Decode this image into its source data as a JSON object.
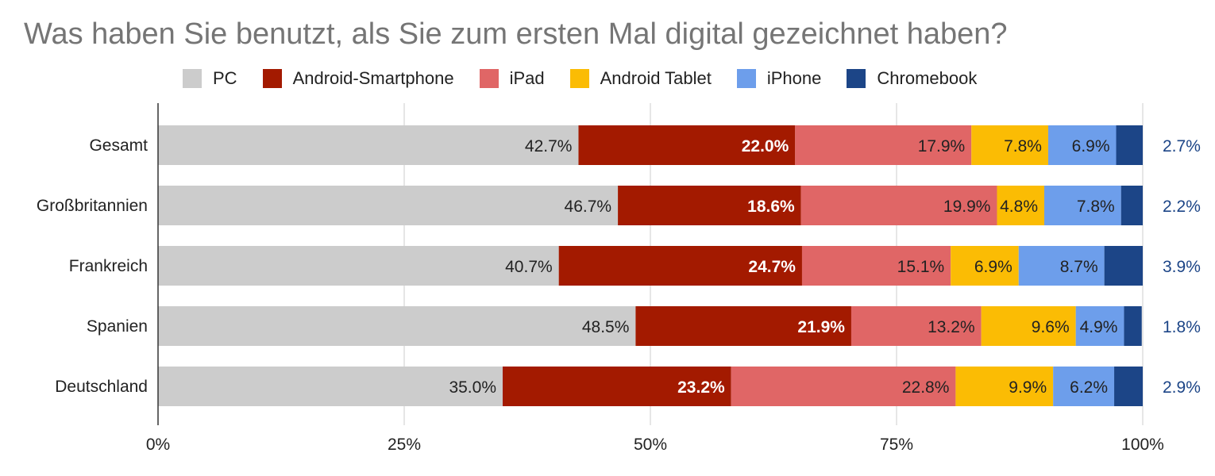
{
  "chart_data": {
    "type": "bar",
    "orientation": "horizontal",
    "stacked": true,
    "title": "Was haben Sie benutzt, als Sie zum ersten Mal digital gezeichnet haben?",
    "categories": [
      "Gesamt",
      "Großbritannien",
      "Frankreich",
      "Spanien",
      "Deutschland"
    ],
    "series": [
      {
        "name": "PC",
        "color": "#cccccc",
        "label_color": "#222222",
        "label_bold": false,
        "values": [
          42.7,
          46.7,
          40.7,
          48.5,
          35.0
        ],
        "labels": [
          "42.7%",
          "46.7%",
          "40.7%",
          "48.5%",
          "35.0%"
        ]
      },
      {
        "name": "Android-Smartphone",
        "color": "#a31a00",
        "label_color": "#ffffff",
        "label_bold": true,
        "values": [
          22.0,
          18.6,
          24.7,
          21.9,
          23.2
        ],
        "labels": [
          "22.0%",
          "18.6%",
          "24.7%",
          "21.9%",
          "23.2%"
        ]
      },
      {
        "name": "iPad",
        "color": "#e06666",
        "label_color": "#222222",
        "label_bold": false,
        "values": [
          17.9,
          19.9,
          15.1,
          13.2,
          22.8
        ],
        "labels": [
          "17.9%",
          "19.9%",
          "15.1%",
          "13.2%",
          "22.8%"
        ]
      },
      {
        "name": "Android Tablet",
        "color": "#fbbc04",
        "label_color": "#222222",
        "label_bold": false,
        "values": [
          7.8,
          4.8,
          6.9,
          9.6,
          9.9
        ],
        "labels": [
          "7.8%",
          "4.8%",
          "6.9%",
          "9.6%",
          "9.9%"
        ]
      },
      {
        "name": "iPhone",
        "color": "#6d9eeb",
        "label_color": "#222222",
        "label_bold": false,
        "values": [
          6.9,
          7.8,
          8.7,
          4.9,
          6.2
        ],
        "labels": [
          "6.9%",
          "7.8%",
          "8.7%",
          "4.9%",
          "6.2%"
        ]
      },
      {
        "name": "Chromebook",
        "color": "#1c4587",
        "label_color": "#1c4587",
        "label_bold": false,
        "label_outside": true,
        "values": [
          2.7,
          2.2,
          3.9,
          1.8,
          2.9
        ],
        "labels": [
          "2.7%",
          "2.2%",
          "3.9%",
          "1.8%",
          "2.9%"
        ]
      }
    ],
    "xlim": [
      0,
      100
    ],
    "xticks": [
      0,
      25,
      50,
      75,
      100
    ],
    "xtick_labels": [
      "0%",
      "25%",
      "50%",
      "75%",
      "100%"
    ],
    "grid": true,
    "legend": "top"
  }
}
